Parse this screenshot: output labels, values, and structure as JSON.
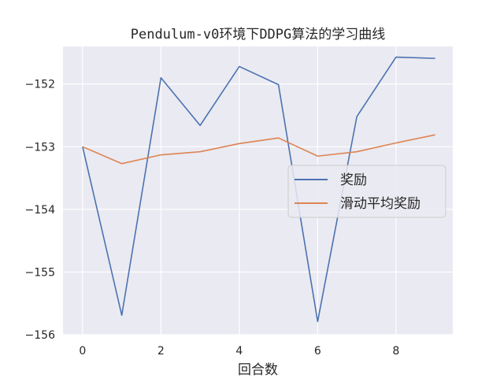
{
  "chart_data": {
    "type": "line",
    "title": "Pendulum-v0环境下DDPG算法的学习曲线",
    "xlabel": "回合数",
    "ylabel": "",
    "x": [
      0,
      1,
      2,
      3,
      4,
      5,
      6,
      7,
      8,
      9
    ],
    "xlim": [
      -0.5,
      9.45
    ],
    "ylim": [
      -156.0,
      -151.4
    ],
    "xticks": [
      0,
      2,
      4,
      6,
      8
    ],
    "yticks": [
      -156,
      -155,
      -154,
      -153,
      -152
    ],
    "ytick_labels": [
      "−156",
      "−155",
      "−154",
      "−153",
      "−152"
    ],
    "xtick_labels": [
      "0",
      "2",
      "4",
      "6",
      "8"
    ],
    "grid": true,
    "legend_position": "center-right",
    "series": [
      {
        "name": "奖励",
        "color": "#4c72b0",
        "values": [
          -153.0,
          -155.69,
          -151.9,
          -152.66,
          -151.72,
          -152.01,
          -155.79,
          -152.52,
          -151.57,
          -151.59
        ]
      },
      {
        "name": "滑动平均奖励",
        "color": "#dd8452",
        "values": [
          -153.0,
          -153.27,
          -153.13,
          -153.08,
          -152.95,
          -152.86,
          -153.15,
          -153.08,
          -152.94,
          -152.81
        ]
      }
    ],
    "background_color": "#eaeaf2",
    "grid_color": "#ffffff"
  }
}
